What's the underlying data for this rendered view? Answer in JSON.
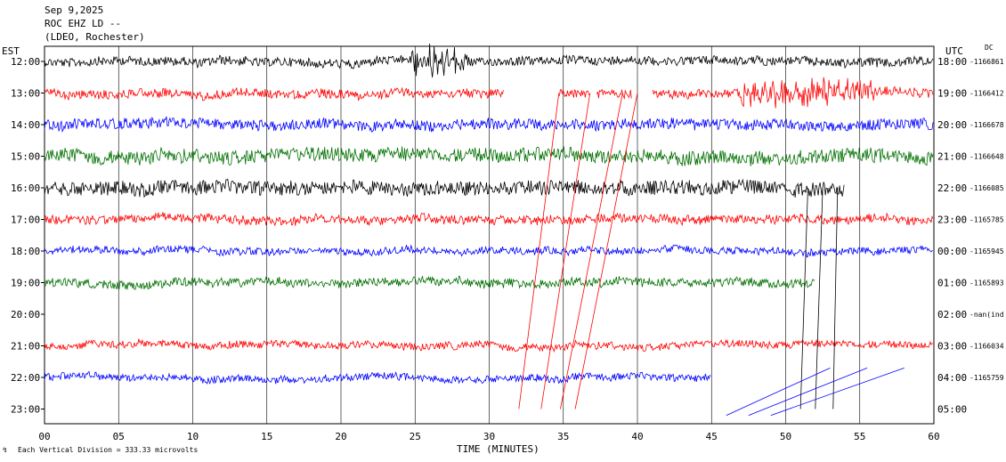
{
  "header": {
    "date": "Sep 9,2025",
    "station": "ROC EHZ LD --",
    "network": "(LDEO, Rochester)"
  },
  "left_axis_label": "EST",
  "right_axis_label": "UTC",
  "dc_label": "DC",
  "footer_note": "Each Vertical Division =  333.33 microvolts",
  "colors": {
    "black": "#000000",
    "red": "#ff0000",
    "blue": "#0000ff",
    "green": "#007000",
    "grid": "#000000"
  },
  "chart_data": {
    "type": "line",
    "xlabel": "TIME (MINUTES)",
    "x_ticks": [
      "00",
      "05",
      "10",
      "15",
      "20",
      "25",
      "30",
      "35",
      "40",
      "45",
      "50",
      "55",
      "60"
    ],
    "xlim": [
      0,
      60
    ],
    "rows": [
      {
        "est": "12:00",
        "utc": "18:00",
        "dc": "-1166861",
        "color": "black",
        "end_min": 60,
        "amp": 5,
        "burst": [
          [
            24.5,
            28.5,
            18
          ]
        ]
      },
      {
        "est": "13:00",
        "utc": "19:00",
        "dc": "-1166412",
        "color": "red",
        "end_min": 60,
        "amp": 5,
        "gaps": [
          [
            31,
            34.7
          ],
          [
            36.8,
            37.2
          ],
          [
            39.6,
            41
          ]
        ],
        "burst": [
          [
            47,
            56,
            16
          ]
        ]
      },
      {
        "est": "14:00",
        "utc": "20:00",
        "dc": "-1166678",
        "color": "blue",
        "end_min": 60,
        "amp": 6,
        "burst": []
      },
      {
        "est": "15:00",
        "utc": "21:00",
        "dc": "-1166648",
        "color": "green",
        "end_min": 60,
        "amp": 8,
        "burst": []
      },
      {
        "est": "16:00",
        "utc": "22:00",
        "dc": "-1166085",
        "color": "black",
        "end_min": 54,
        "amp": 8,
        "burst": []
      },
      {
        "est": "17:00",
        "utc": "23:00",
        "dc": "-1165785",
        "color": "red",
        "end_min": 60,
        "amp": 5,
        "burst": []
      },
      {
        "est": "18:00",
        "utc": "00:00",
        "dc": "-1165945",
        "color": "blue",
        "end_min": 60,
        "amp": 4,
        "burst": []
      },
      {
        "est": "19:00",
        "utc": "01:00",
        "dc": "-1165893",
        "color": "green",
        "end_min": 52,
        "amp": 5,
        "burst": []
      },
      {
        "est": "20:00",
        "utc": "02:00",
        "dc": "-nan(ind",
        "color": "black",
        "end_min": 0,
        "amp": 0,
        "burst": []
      },
      {
        "est": "21:00",
        "utc": "03:00",
        "dc": "-1166034",
        "color": "red",
        "end_min": 60,
        "amp": 4,
        "burst": []
      },
      {
        "est": "22:00",
        "utc": "04:00",
        "dc": "-1165759",
        "color": "blue",
        "end_min": 45,
        "amp": 4,
        "burst": []
      },
      {
        "est": "23:00",
        "utc": "05:00",
        "dc": "",
        "color": "green",
        "end_min": 0,
        "amp": 0,
        "burst": []
      }
    ]
  }
}
